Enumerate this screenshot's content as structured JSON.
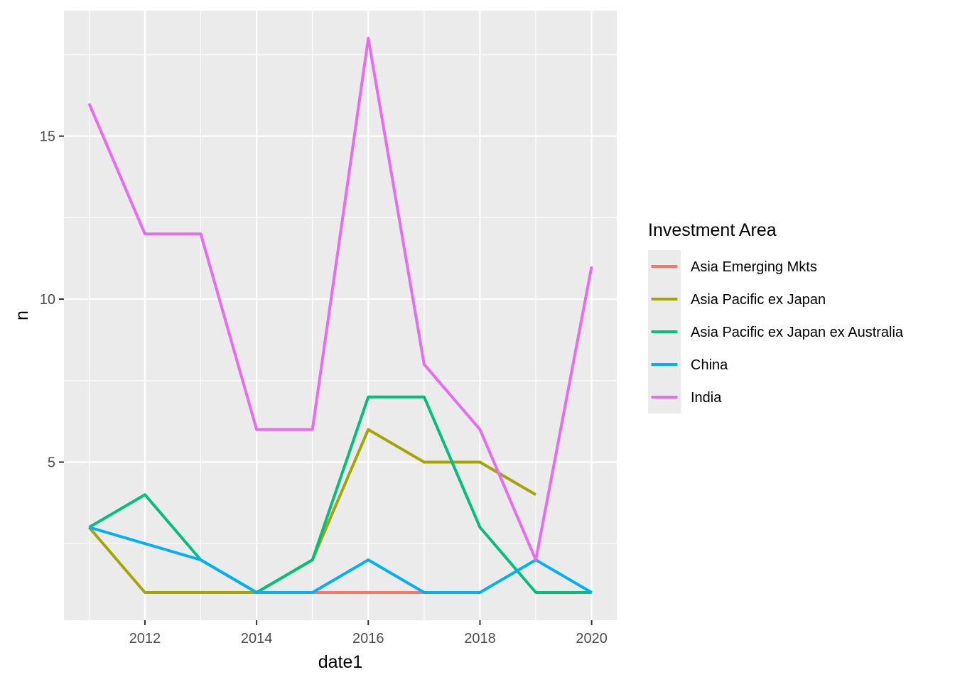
{
  "chart_data": {
    "type": "line",
    "xlabel": "date1",
    "ylabel": "n",
    "xlim": [
      2010.55,
      2020.45
    ],
    "ylim": [
      0.15,
      18.85
    ],
    "x_ticks": [
      2012,
      2014,
      2016,
      2018,
      2020
    ],
    "x_tick_labels": [
      "2012",
      "2014",
      "2016",
      "2018",
      "2020"
    ],
    "x_minor_ticks": [
      2011,
      2013,
      2015,
      2017,
      2019
    ],
    "y_ticks": [
      5,
      10,
      15
    ],
    "y_tick_labels": [
      "5",
      "10",
      "15"
    ],
    "y_minor_ticks": [
      2.5,
      7.5,
      12.5,
      17.5
    ],
    "grid": true,
    "legend": {
      "title": "Investment Area",
      "position": "right"
    },
    "series": [
      {
        "name": "Asia Emerging Mkts",
        "color": "#F8766D",
        "points": [
          [
            2015,
            1
          ],
          [
            2016,
            1
          ],
          [
            2017,
            1
          ]
        ]
      },
      {
        "name": "Asia Pacific ex Japan",
        "color": "#A3A500",
        "points": [
          [
            2011,
            3
          ],
          [
            2012,
            1
          ],
          [
            2013,
            1
          ],
          [
            2014,
            1
          ],
          [
            2015,
            2
          ],
          [
            2016,
            6
          ],
          [
            2017,
            5
          ],
          [
            2018,
            5
          ],
          [
            2019,
            4
          ]
        ]
      },
      {
        "name": "Asia Pacific ex Japan ex Australia",
        "color": "#00BF7D",
        "points": [
          [
            2011,
            3
          ],
          [
            2012,
            4
          ],
          [
            2013,
            2
          ],
          [
            2014,
            1
          ],
          [
            2015,
            2
          ],
          [
            2016,
            7
          ],
          [
            2017,
            7
          ],
          [
            2018,
            3
          ],
          [
            2019,
            1
          ],
          [
            2020,
            1
          ]
        ]
      },
      {
        "name": "China",
        "color": "#00B0F6",
        "points": [
          [
            2011,
            3
          ],
          [
            2013,
            2
          ],
          [
            2014,
            1
          ],
          [
            2015,
            1
          ],
          [
            2016,
            2
          ],
          [
            2017,
            1
          ],
          [
            2018,
            1
          ],
          [
            2019,
            2
          ],
          [
            2020,
            1
          ]
        ]
      },
      {
        "name": "India",
        "color": "#E76BF3",
        "points": [
          [
            2011,
            16
          ],
          [
            2012,
            12
          ],
          [
            2013,
            12
          ],
          [
            2014,
            6
          ],
          [
            2015,
            6
          ],
          [
            2016,
            18
          ],
          [
            2017,
            8
          ],
          [
            2018,
            6
          ],
          [
            2019,
            2
          ],
          [
            2020,
            11
          ]
        ]
      }
    ]
  }
}
